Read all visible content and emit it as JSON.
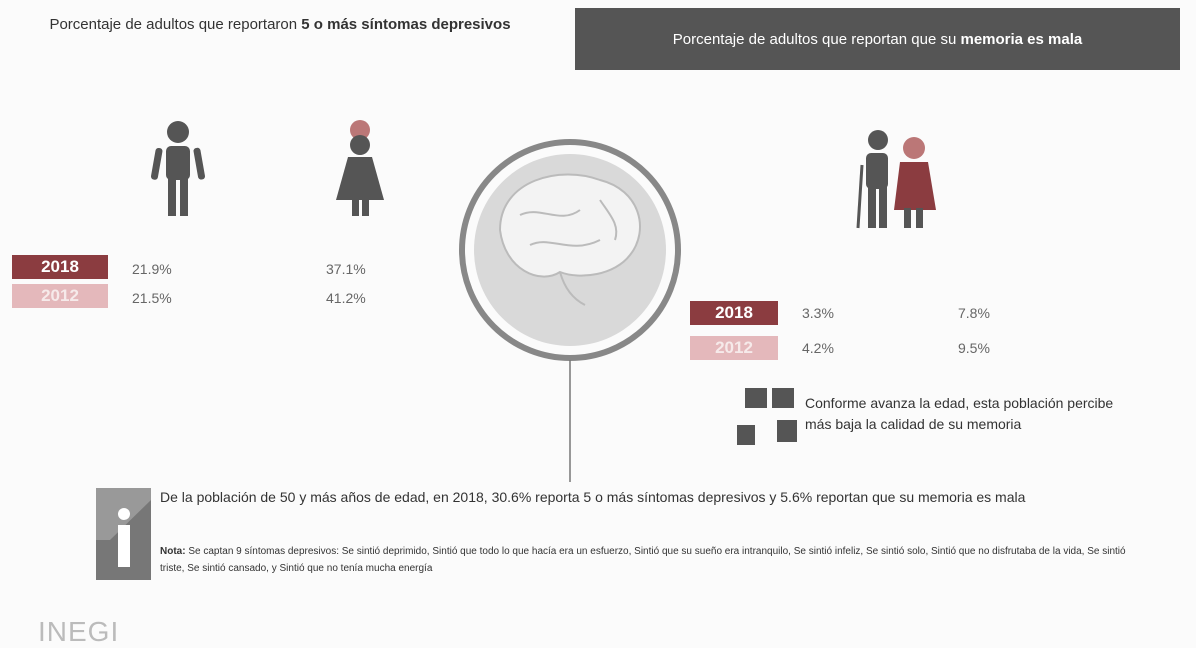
{
  "left_panel": {
    "title_prefix": "Porcentaje de adultos que reportaron",
    "title_bold": "5 o más síntomas depresivos",
    "rows": [
      [
        "2018",
        "21.9%",
        "37.1%"
      ],
      [
        "2012",
        "21.5%",
        "41.2%"
      ]
    ]
  },
  "right_panel": {
    "title_prefix": "Porcentaje de adultos que reportan que su",
    "title_bold": "memoria es mala",
    "rows": [
      [
        "2018",
        "3.3%",
        "7.8%"
      ],
      [
        "2012",
        "4.2%",
        "9.5%"
      ]
    ],
    "note": "Conforme avanza la edad, esta población percibe más baja la calidad de su memoria"
  },
  "info": {
    "text": "De la población de 50 y más años de edad, en 2018, 30.6% reporta 5 o más síntomas depresivos y 5.6% reportan que su memoria es mala",
    "note_label": "Nota:",
    "note_text": "Se captan 9 síntomas depresivos: Se sintió deprimido, Sintió que todo lo que hacía era un esfuerzo, Sintió que su sueño era intranquilo, Se sintió infeliz, Se sintió solo, Sintió que no disfrutaba de la vida, Se sintió triste, Se sintió cansado, y Sintió que no tenía mucha energía"
  },
  "footer": {
    "logo": "INEGI"
  }
}
